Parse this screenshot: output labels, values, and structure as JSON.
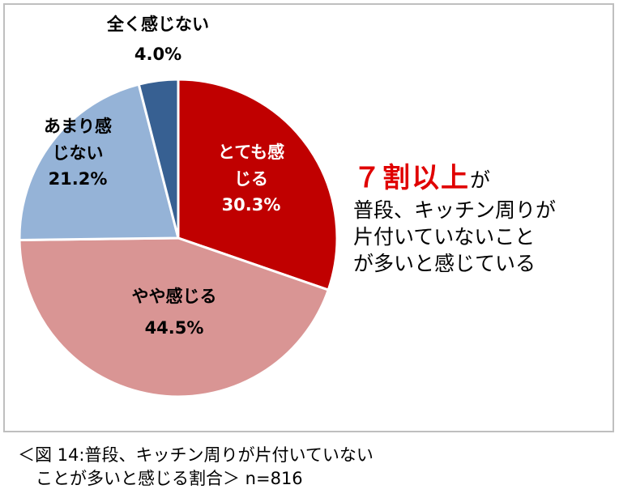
{
  "chart_data": {
    "type": "pie",
    "start_angle_deg": 0,
    "direction": "clockwise",
    "slices": [
      {
        "label": "とても感じる",
        "label_lines": [
          "とても感",
          "じる"
        ],
        "value": 30.3,
        "value_label": "30.3%",
        "color": "#c00000"
      },
      {
        "label": "やや感じる",
        "label_lines": [
          "やや感じる"
        ],
        "value": 44.5,
        "value_label": "44.5%",
        "color": "#d99594"
      },
      {
        "label": "あまり感じない",
        "label_lines": [
          "あまり感",
          "じない"
        ],
        "value": 21.2,
        "value_label": "21.2%",
        "color": "#95b3d7"
      },
      {
        "label": "全く感じない",
        "label_lines": [
          "全く感じない"
        ],
        "value": 4.0,
        "value_label": "4.0%",
        "color": "#376092"
      }
    ]
  },
  "callout": {
    "highlight": "７割以上",
    "highlight_suffix": "が",
    "body_lines": [
      "普段、キッチン周りが",
      "片付いていないこと",
      "が多いと感じている"
    ]
  },
  "caption": {
    "line1": "＜図 14:普段、キッチン周りが片付いていない",
    "line2": "ことが多いと感じる割合＞ n=816"
  }
}
